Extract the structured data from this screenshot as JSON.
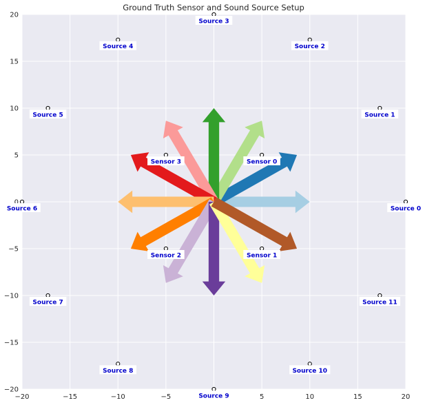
{
  "chart_data": {
    "type": "scatter",
    "title": "Ground Truth Sensor and Sound Source Setup",
    "xlabel": "",
    "ylabel": "",
    "xlim": [
      -20,
      20
    ],
    "ylim": [
      -20,
      20
    ],
    "xticks": [
      -20,
      -15,
      -10,
      -5,
      0,
      5,
      10,
      15,
      20
    ],
    "yticks": [
      -20,
      -15,
      -10,
      -5,
      0,
      5,
      10,
      15,
      20
    ],
    "xtick_labels": [
      "−20",
      "−15",
      "−10",
      "−5",
      "0",
      "5",
      "10",
      "15",
      "20"
    ],
    "ytick_labels": [
      "−20",
      "−15",
      "−10",
      "−5",
      "0",
      "5",
      "10",
      "15",
      "20"
    ],
    "grid": true,
    "sources": [
      {
        "label": "Source 0",
        "x": 20,
        "y": 0
      },
      {
        "label": "Source 1",
        "x": 17.3,
        "y": 10
      },
      {
        "label": "Source 2",
        "x": 10,
        "y": 17.3
      },
      {
        "label": "Source 3",
        "x": 0,
        "y": 20
      },
      {
        "label": "Source 4",
        "x": -10,
        "y": 17.3
      },
      {
        "label": "Source 5",
        "x": -17.3,
        "y": 10
      },
      {
        "label": "Source 6",
        "x": -20,
        "y": 0
      },
      {
        "label": "Source 7",
        "x": -17.3,
        "y": -10
      },
      {
        "label": "Source 8",
        "x": -10,
        "y": -17.3
      },
      {
        "label": "Source 9",
        "x": 0,
        "y": -20
      },
      {
        "label": "Source 10",
        "x": 10,
        "y": -17.3
      },
      {
        "label": "Source 11",
        "x": 17.3,
        "y": -10
      }
    ],
    "sensors": [
      {
        "label": "Sensor 0",
        "x": 5,
        "y": 5
      },
      {
        "label": "Sensor 1",
        "x": 5,
        "y": -5
      },
      {
        "label": "Sensor 2",
        "x": -5,
        "y": -5
      },
      {
        "label": "Sensor 3",
        "x": -5,
        "y": 5
      }
    ],
    "arrows": [
      {
        "angle_deg": 0,
        "length": 10,
        "color": "#a6cee3"
      },
      {
        "angle_deg": 30,
        "length": 10,
        "color": "#1f78b4"
      },
      {
        "angle_deg": 60,
        "length": 10,
        "color": "#b2df8a"
      },
      {
        "angle_deg": 90,
        "length": 10,
        "color": "#33a02c"
      },
      {
        "angle_deg": 120,
        "length": 10,
        "color": "#fb9a99"
      },
      {
        "angle_deg": 150,
        "length": 10,
        "color": "#e31a1c"
      },
      {
        "angle_deg": 180,
        "length": 10,
        "color": "#fdbf6f"
      },
      {
        "angle_deg": 210,
        "length": 10,
        "color": "#ff7f00"
      },
      {
        "angle_deg": 240,
        "length": 10,
        "color": "#cab2d6"
      },
      {
        "angle_deg": 270,
        "length": 10,
        "color": "#6a3d9a"
      },
      {
        "angle_deg": 300,
        "length": 10,
        "color": "#ffff99"
      },
      {
        "angle_deg": 330,
        "length": 10,
        "color": "#b15928"
      }
    ],
    "colors": {
      "plot_background": "#eaeaf2",
      "grid": "#ffffff",
      "label_text": "#0000cc",
      "label_box": "#ffffff",
      "marker_edge": "#000000",
      "marker_fill": "#ffffff"
    }
  }
}
